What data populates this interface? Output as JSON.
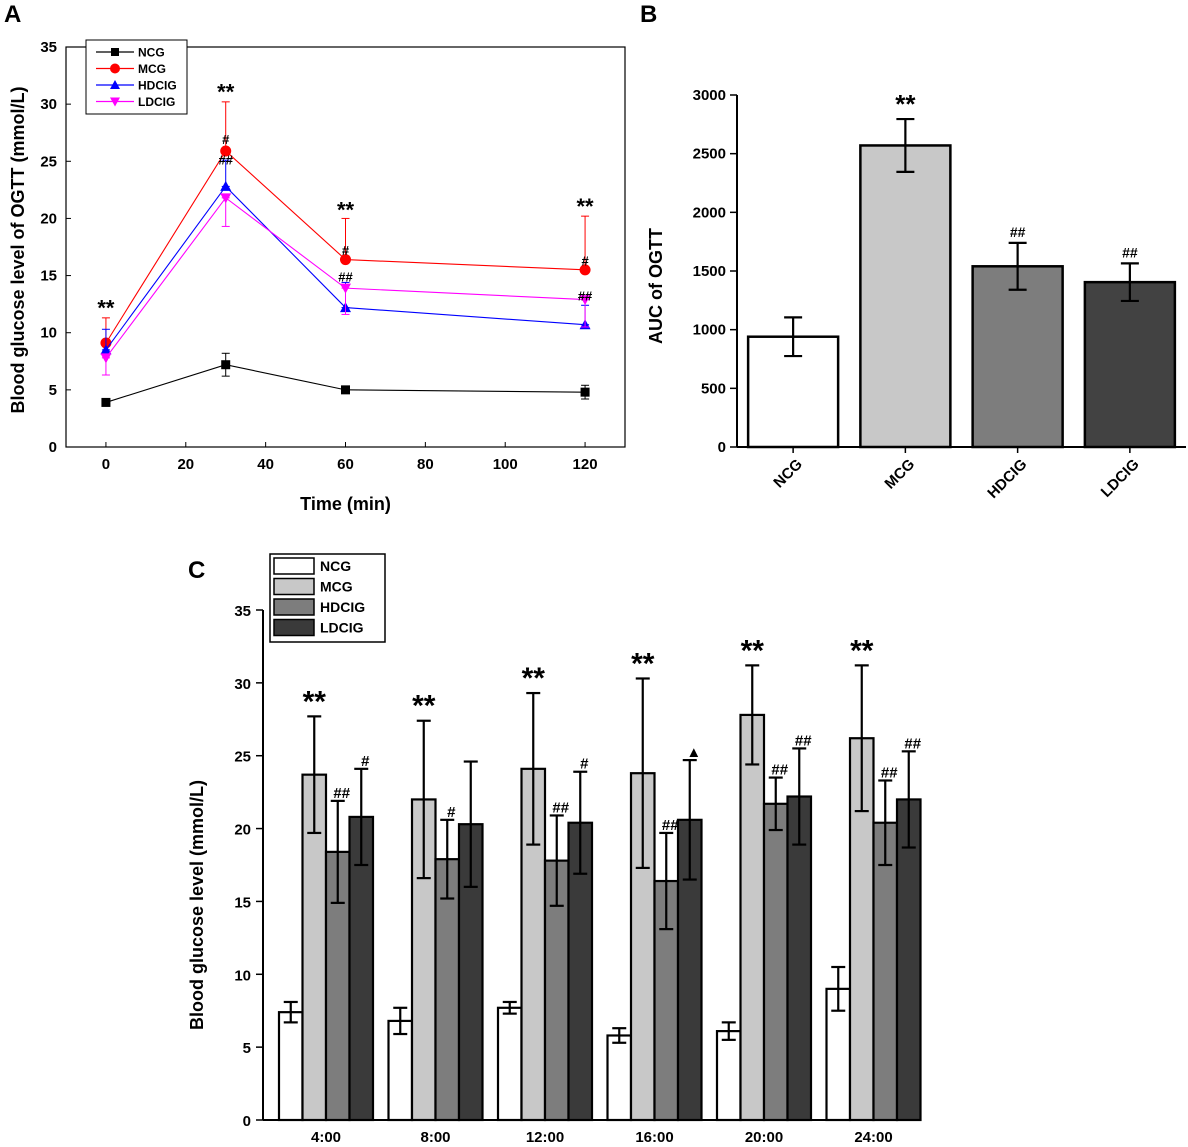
{
  "panels": {
    "a": "A",
    "b": "B",
    "c": "C"
  },
  "chart_data": [
    {
      "panel": "A",
      "type": "line",
      "xlabel": "Time (min)",
      "ylabel": "Blood glucose level of OGTT (mmol/L)",
      "xlim": [
        -10,
        130
      ],
      "ylim": [
        0,
        35
      ],
      "xticks": [
        0,
        20,
        40,
        60,
        80,
        100,
        120
      ],
      "yticks": [
        0,
        5,
        10,
        15,
        20,
        25,
        30,
        35
      ],
      "x": [
        0,
        30,
        60,
        120
      ],
      "series": [
        {
          "name": "NCG",
          "values": [
            3.9,
            7.2,
            5.0,
            4.8
          ],
          "errors": [
            0.3,
            1.0,
            0.3,
            0.6
          ],
          "color": "#000000",
          "marker": "square"
        },
        {
          "name": "MCG",
          "values": [
            9.1,
            25.9,
            16.4,
            15.5
          ],
          "errors": [
            2.2,
            4.3,
            3.6,
            4.7
          ],
          "color": "#ff0000",
          "marker": "circle"
        },
        {
          "name": "HDCIG",
          "values": [
            8.5,
            22.8,
            12.2,
            10.7
          ],
          "errors": [
            1.8,
            2.3,
            2.2,
            1.7
          ],
          "color": "#0000ff",
          "marker": "triangle-up"
        },
        {
          "name": "LDCIG",
          "values": [
            7.8,
            21.8,
            13.9,
            12.9
          ],
          "errors": [
            1.5,
            2.5,
            2.3,
            2.4
          ],
          "color": "#ff00ff",
          "marker": "triangle-down"
        }
      ],
      "annotations": [
        {
          "x": 0,
          "y": 11.5,
          "text": "**",
          "size": 22
        },
        {
          "x": 30,
          "y": 30.4,
          "text": "**",
          "size": 22
        },
        {
          "x": 60,
          "y": 20.1,
          "text": "**",
          "size": 22
        },
        {
          "x": 120,
          "y": 20.4,
          "text": "**",
          "size": 22
        },
        {
          "x": 30,
          "y": 26.5,
          "text": "#",
          "size": 13
        },
        {
          "x": 30,
          "y": 24.7,
          "text": "##",
          "size": 13
        },
        {
          "x": 60,
          "y": 16.8,
          "text": "#",
          "size": 13
        },
        {
          "x": 60,
          "y": 14.5,
          "text": "##",
          "size": 13
        },
        {
          "x": 120,
          "y": 15.9,
          "text": "#",
          "size": 13
        },
        {
          "x": 120,
          "y": 12.8,
          "text": "##",
          "size": 13
        }
      ]
    },
    {
      "panel": "B",
      "type": "bar",
      "ylabel": "AUC of OGTT",
      "categories": [
        "NCG",
        "MCG",
        "HDCIG",
        "LDCIG"
      ],
      "values": [
        940,
        2570,
        1540,
        1405
      ],
      "errors": [
        165,
        225,
        200,
        160
      ],
      "colors": [
        "#ffffff",
        "#c8c8c8",
        "#7d7d7d",
        "#424242"
      ],
      "ylim": [
        0,
        3000
      ],
      "yticks": [
        0,
        500,
        1000,
        1500,
        2000,
        2500,
        3000
      ],
      "annotations": [
        {
          "index": 1,
          "text": "**",
          "size": 26
        },
        {
          "index": 2,
          "text": "##",
          "size": 14
        },
        {
          "index": 3,
          "text": "##",
          "size": 14
        }
      ]
    },
    {
      "panel": "C",
      "type": "bar",
      "ylabel": "Blood glucose level (mmol/L)",
      "categories": [
        "4:00",
        "8:00",
        "12:00",
        "16:00",
        "20:00",
        "24:00"
      ],
      "ylim": [
        0,
        35
      ],
      "yticks": [
        0,
        5,
        10,
        15,
        20,
        25,
        30,
        35
      ],
      "series": [
        {
          "name": "NCG",
          "color": "#ffffff",
          "values": [
            7.4,
            6.8,
            7.7,
            5.8,
            6.1,
            9.0
          ],
          "errors": [
            0.7,
            0.9,
            0.4,
            0.5,
            0.6,
            1.5
          ]
        },
        {
          "name": "MCG",
          "color": "#c8c8c8",
          "values": [
            23.7,
            22.0,
            24.1,
            23.8,
            27.8,
            26.2
          ],
          "errors": [
            4.0,
            5.4,
            5.2,
            6.5,
            3.4,
            5.0
          ]
        },
        {
          "name": "HDCIG",
          "color": "#7d7d7d",
          "values": [
            18.4,
            17.9,
            17.8,
            16.4,
            21.7,
            20.4
          ],
          "errors": [
            3.5,
            2.7,
            3.1,
            3.3,
            1.8,
            2.9
          ]
        },
        {
          "name": "LDCIG",
          "color": "#3a3a3a",
          "values": [
            20.8,
            20.3,
            20.4,
            20.6,
            22.2,
            22.0
          ],
          "errors": [
            3.3,
            4.3,
            3.5,
            4.1,
            3.3,
            3.3
          ]
        }
      ],
      "annotations": [
        {
          "group": 0,
          "series": 1,
          "text": "**"
        },
        {
          "group": 0,
          "series": 2,
          "text": "##"
        },
        {
          "group": 0,
          "series": 3,
          "text": "#"
        },
        {
          "group": 1,
          "series": 1,
          "text": "**"
        },
        {
          "group": 1,
          "series": 2,
          "text": "#"
        },
        {
          "group": 2,
          "series": 1,
          "text": "**"
        },
        {
          "group": 2,
          "series": 2,
          "text": "##"
        },
        {
          "group": 2,
          "series": 3,
          "text": "#"
        },
        {
          "group": 3,
          "series": 1,
          "text": "**"
        },
        {
          "group": 3,
          "series": 2,
          "text": "##"
        },
        {
          "group": 3,
          "series": 3,
          "text": "▲"
        },
        {
          "group": 4,
          "series": 1,
          "text": "**"
        },
        {
          "group": 4,
          "series": 2,
          "text": "##"
        },
        {
          "group": 4,
          "series": 3,
          "text": "##"
        },
        {
          "group": 5,
          "series": 1,
          "text": "**"
        },
        {
          "group": 5,
          "series": 2,
          "text": "##"
        },
        {
          "group": 5,
          "series": 3,
          "text": "##"
        }
      ]
    }
  ]
}
